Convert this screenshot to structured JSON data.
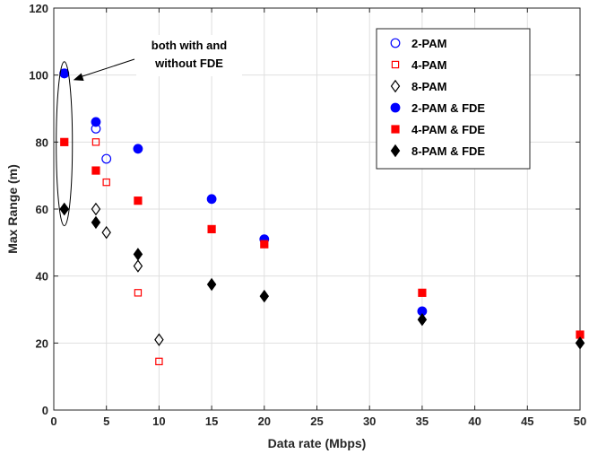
{
  "chart_data": {
    "type": "scatter",
    "xlabel": "Data rate (Mbps)",
    "ylabel": "Max Range (m)",
    "xlim": [
      0,
      50
    ],
    "ylim": [
      0,
      120
    ],
    "xticks": [
      0,
      5,
      10,
      15,
      20,
      25,
      30,
      35,
      40,
      45,
      50
    ],
    "yticks": [
      0,
      20,
      40,
      60,
      80,
      100,
      120
    ],
    "grid": true,
    "legend_position": "top-right",
    "series": [
      {
        "name": "2-PAM",
        "marker": "circle",
        "filled": false,
        "color": "#0000ff",
        "points": [
          [
            1,
            100.5
          ],
          [
            4,
            84
          ],
          [
            5,
            75
          ]
        ]
      },
      {
        "name": "4-PAM",
        "marker": "square",
        "filled": false,
        "color": "#ff0000",
        "points": [
          [
            1,
            80
          ],
          [
            4,
            80
          ],
          [
            5,
            68
          ],
          [
            8,
            35
          ],
          [
            10,
            14.5
          ]
        ]
      },
      {
        "name": "8-PAM",
        "marker": "diamond",
        "filled": false,
        "color": "#000000",
        "points": [
          [
            1,
            60
          ],
          [
            4,
            60
          ],
          [
            5,
            53
          ],
          [
            8,
            43
          ],
          [
            10,
            21
          ]
        ]
      },
      {
        "name": "2-PAM & FDE",
        "marker": "circle",
        "filled": true,
        "color": "#0000ff",
        "points": [
          [
            1,
            100.5
          ],
          [
            4,
            86
          ],
          [
            8,
            78
          ],
          [
            15,
            63
          ],
          [
            20,
            51
          ],
          [
            35,
            29.5
          ]
        ]
      },
      {
        "name": "4-PAM & FDE",
        "marker": "square",
        "filled": true,
        "color": "#ff0000",
        "points": [
          [
            1,
            80
          ],
          [
            4,
            71.5
          ],
          [
            8,
            62.5
          ],
          [
            15,
            54
          ],
          [
            20,
            49.5
          ],
          [
            35,
            35
          ],
          [
            50,
            22.5
          ]
        ]
      },
      {
        "name": "8-PAM & FDE",
        "marker": "diamond",
        "filled": true,
        "color": "#000000",
        "points": [
          [
            1,
            60
          ],
          [
            4,
            56
          ],
          [
            8,
            46.5
          ],
          [
            15,
            37.5
          ],
          [
            20,
            34
          ],
          [
            35,
            27
          ],
          [
            50,
            20
          ]
        ]
      }
    ],
    "annotation": {
      "lines": [
        "both with and",
        "without FDE"
      ],
      "ellipse_center": [
        1,
        80
      ],
      "ellipse_y_range": [
        55,
        104
      ]
    }
  }
}
